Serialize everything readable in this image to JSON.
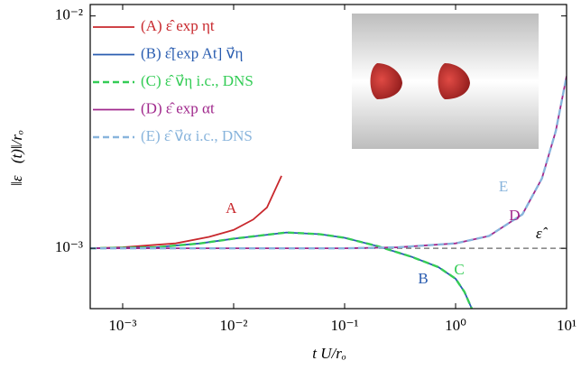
{
  "chart_data": {
    "type": "line",
    "xlabel": "t U/rₒ",
    "ylabel": "‖ε⃗(t)‖/rₒ",
    "xscale": "log",
    "yscale": "log",
    "xlim": [
      0.00051,
      10
    ],
    "ylim": [
      0.00055,
      0.0112
    ],
    "xticks": [
      {
        "value": 0.001,
        "label": "10⁻³"
      },
      {
        "value": 0.01,
        "label": "10⁻²"
      },
      {
        "value": 0.1,
        "label": "10⁻¹"
      },
      {
        "value": 1,
        "label": "10⁰"
      },
      {
        "value": 10,
        "label": "10¹"
      }
    ],
    "yticks": [
      {
        "value": 0.001,
        "label": "10⁻³"
      },
      {
        "value": 0.01,
        "label": "10⁻²"
      }
    ],
    "legend": "upper left",
    "series": [
      {
        "name": "(A) ε̂ exp ηt",
        "color": "#c8282d",
        "dash": false,
        "x": [
          0.00051,
          0.001,
          0.003,
          0.006,
          0.01,
          0.015,
          0.02,
          0.027
        ],
        "values": [
          0.001,
          0.00101,
          0.00105,
          0.00112,
          0.0012,
          0.00133,
          0.0015,
          0.00205
        ]
      },
      {
        "name": "(B) ε̂[exp At] v⃗η",
        "color": "#2a5db0",
        "dash": false,
        "x": [
          0.00051,
          0.002,
          0.005,
          0.01,
          0.03,
          0.06,
          0.1,
          0.2,
          0.4,
          0.7,
          1,
          1.2,
          1.4
        ],
        "values": [
          0.001,
          0.00101,
          0.00105,
          0.0011,
          0.00117,
          0.00115,
          0.00111,
          0.00102,
          0.00092,
          0.00083,
          0.00074,
          0.00065,
          0.00055
        ]
      },
      {
        "name": "(C) ε̂ v⃗η i.c., DNS",
        "color": "#33cc55",
        "dash": true,
        "x": [
          0.00051,
          0.002,
          0.005,
          0.01,
          0.03,
          0.06,
          0.1,
          0.2,
          0.4,
          0.7,
          1,
          1.2,
          1.4
        ],
        "values": [
          0.001,
          0.00101,
          0.00105,
          0.0011,
          0.00117,
          0.00115,
          0.00111,
          0.00102,
          0.00092,
          0.00083,
          0.00074,
          0.00065,
          0.00055
        ]
      },
      {
        "name": "(D) ε̂ exp αt",
        "color": "#a0288c",
        "dash": false,
        "x": [
          0.00051,
          0.1,
          0.3,
          1,
          2,
          4,
          6,
          8,
          10
        ],
        "values": [
          0.001,
          0.001,
          0.00101,
          0.00105,
          0.00113,
          0.0014,
          0.002,
          0.0032,
          0.0055
        ]
      },
      {
        "name": "(E) ε̂ v⃗α i.c., DNS",
        "color": "#88b4dc",
        "dash": true,
        "x": [
          0.00051,
          0.1,
          0.3,
          1,
          2,
          4,
          6,
          8,
          10
        ],
        "values": [
          0.001,
          0.001,
          0.00101,
          0.00105,
          0.00113,
          0.0014,
          0.002,
          0.0032,
          0.0055
        ]
      }
    ],
    "reference_line": {
      "value": 0.001,
      "label": "ε̂",
      "color": "#666666"
    },
    "annotations": [
      {
        "text": "A",
        "x": 0.0095,
        "y": 0.00147,
        "color": "#c8282d"
      },
      {
        "text": "B",
        "x": 0.51,
        "y": 0.00073,
        "color": "#2a5db0"
      },
      {
        "text": "C",
        "x": 1.08,
        "y": 0.0008,
        "color": "#33cc55"
      },
      {
        "text": "D",
        "x": 3.4,
        "y": 0.00137,
        "color": "#a0288c"
      },
      {
        "text": "E",
        "x": 2.7,
        "y": 0.00182,
        "color": "#88b4dc"
      }
    ]
  }
}
